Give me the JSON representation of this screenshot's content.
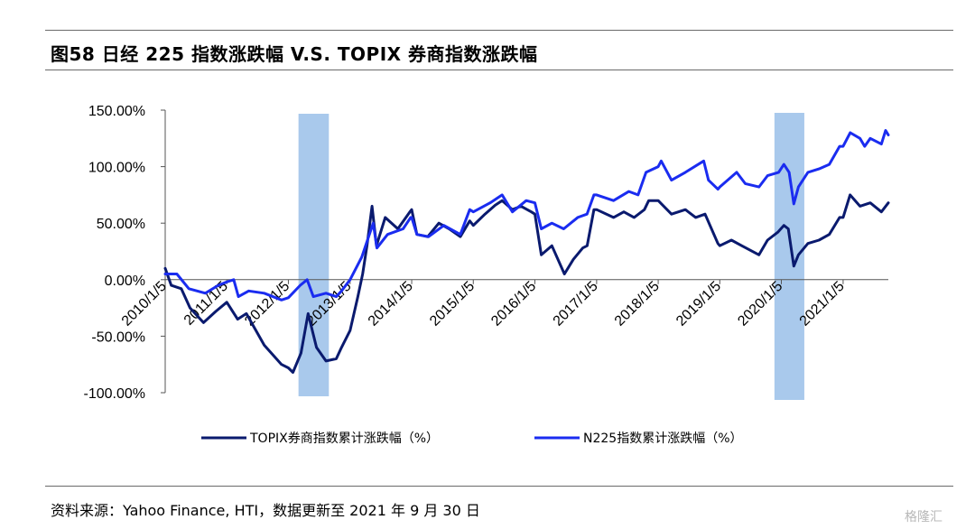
{
  "page": {
    "title": "图58 日经 225 指数涨跌幅 V.S. TOPIX 券商指数涨跌幅",
    "source": "资料来源：Yahoo Finance, HTI，数据更新至 2021 年 9 月 30 日",
    "watermark": "格隆汇"
  },
  "chart_data": {
    "type": "line",
    "title": "图58 日经 225 指数涨跌幅 V.S. TOPIX 券商指数涨跌幅",
    "xlabel": "",
    "ylabel": "",
    "ylim": [
      -100,
      150
    ],
    "y_ticks": [
      150,
      100,
      50,
      0,
      -50,
      -100
    ],
    "y_tick_labels": [
      "150.00%",
      "100.00%",
      "50.00%",
      "0.00%",
      "-50.00%",
      "-100.00%"
    ],
    "x_tick_labels": [
      "2010/1/5",
      "2011/1/5",
      "2012/1/5",
      "2013/1/5",
      "2014/1/5",
      "2015/1/5",
      "2016/1/5",
      "2017/1/5",
      "2018/1/5",
      "2019/1/5",
      "2020/1/5",
      "2021/1/5"
    ],
    "x_range": [
      "2010/1/5",
      "2021/9/30"
    ],
    "grid": false,
    "legend_position": "bottom",
    "shaded_periods": [
      {
        "start": "2012/3/5",
        "end": "2012/9/1",
        "color": "#a9c9ec"
      },
      {
        "start": "2019/11/25",
        "end": "2020/5/20",
        "color": "#a9c9ec"
      }
    ],
    "series": [
      {
        "name": "TOPIX券商指数累计涨跌幅（%）",
        "color": "#0a1a6e",
        "points": [
          [
            "2010/1/5",
            10
          ],
          [
            "2010/2/10",
            -5
          ],
          [
            "2010/4/10",
            -8
          ],
          [
            "2010/6/1",
            -25
          ],
          [
            "2010/8/20",
            -38
          ],
          [
            "2010/11/1",
            -28
          ],
          [
            "2011/1/5",
            -20
          ],
          [
            "2011/3/10",
            -35
          ],
          [
            "2011/5/1",
            -30
          ],
          [
            "2011/8/15",
            -58
          ],
          [
            "2011/11/25",
            -75
          ],
          [
            "2012/1/5",
            -78
          ],
          [
            "2012/2/1",
            -82
          ],
          [
            "2012/3/20",
            -65
          ],
          [
            "2012/5/1",
            -30
          ],
          [
            "2012/6/20",
            -60
          ],
          [
            "2012/8/15",
            -72
          ],
          [
            "2012/10/15",
            -70
          ],
          [
            "2012/11/15",
            -60
          ],
          [
            "2013/1/5",
            -45
          ],
          [
            "2013/2/20",
            -15
          ],
          [
            "2013/3/20",
            5
          ],
          [
            "2013/4/15",
            30
          ],
          [
            "2013/5/15",
            65
          ],
          [
            "2013/6/10",
            30
          ],
          [
            "2013/8/1",
            55
          ],
          [
            "2013/10/15",
            45
          ],
          [
            "2013/12/25",
            60
          ],
          [
            "2014/1/5",
            62
          ],
          [
            "2014/2/5",
            40
          ],
          [
            "2014/4/10",
            38
          ],
          [
            "2014/6/15",
            50
          ],
          [
            "2014/8/15",
            45
          ],
          [
            "2014/10/20",
            38
          ],
          [
            "2014/12/15",
            52
          ],
          [
            "2015/1/5",
            48
          ],
          [
            "2015/3/15",
            58
          ],
          [
            "2015/5/15",
            66
          ],
          [
            "2015/6/25",
            70
          ],
          [
            "2015/8/25",
            62
          ],
          [
            "2015/10/15",
            65
          ],
          [
            "2015/12/15",
            60
          ],
          [
            "2016/1/5",
            58
          ],
          [
            "2016/2/12",
            22
          ],
          [
            "2016/4/15",
            30
          ],
          [
            "2016/6/28",
            5
          ],
          [
            "2016/8/20",
            18
          ],
          [
            "2016/10/15",
            28
          ],
          [
            "2016/11/10",
            30
          ],
          [
            "2016/12/20",
            62
          ],
          [
            "2017/1/5",
            62
          ],
          [
            "2017/4/15",
            55
          ],
          [
            "2017/6/15",
            60
          ],
          [
            "2017/8/15",
            55
          ],
          [
            "2017/10/15",
            62
          ],
          [
            "2017/11/10",
            70
          ],
          [
            "2018/1/5",
            70
          ],
          [
            "2018/3/25",
            58
          ],
          [
            "2018/6/15",
            62
          ],
          [
            "2018/8/15",
            55
          ],
          [
            "2018/10/10",
            58
          ],
          [
            "2018/12/25",
            32
          ],
          [
            "2019/1/5",
            30
          ],
          [
            "2019/3/15",
            35
          ],
          [
            "2019/5/15",
            30
          ],
          [
            "2019/8/25",
            22
          ],
          [
            "2019/10/15",
            35
          ],
          [
            "2019/12/15",
            42
          ],
          [
            "2020/1/20",
            48
          ],
          [
            "2020/2/15",
            45
          ],
          [
            "2020/3/19",
            12
          ],
          [
            "2020/4/15",
            22
          ],
          [
            "2020/6/10",
            32
          ],
          [
            "2020/8/15",
            35
          ],
          [
            "2020/10/15",
            40
          ],
          [
            "2020/12/15",
            55
          ],
          [
            "2021/1/5",
            55
          ],
          [
            "2021/2/15",
            75
          ],
          [
            "2021/4/15",
            65
          ],
          [
            "2021/6/15",
            68
          ],
          [
            "2021/8/20",
            60
          ],
          [
            "2021/9/30",
            68
          ]
        ]
      },
      {
        "name": "N225指数累计涨跌幅（%）",
        "color": "#1a2cf0",
        "points": [
          [
            "2010/1/5",
            5
          ],
          [
            "2010/3/15",
            5
          ],
          [
            "2010/5/25",
            -8
          ],
          [
            "2010/8/31",
            -12
          ],
          [
            "2010/11/15",
            -5
          ],
          [
            "2011/1/5",
            -2
          ],
          [
            "2011/2/15",
            0
          ],
          [
            "2011/3/15",
            -15
          ],
          [
            "2011/5/15",
            -10
          ],
          [
            "2011/8/15",
            -12
          ],
          [
            "2011/11/25",
            -18
          ],
          [
            "2012/1/5",
            -16
          ],
          [
            "2012/3/15",
            -5
          ],
          [
            "2012/4/25",
            0
          ],
          [
            "2012/6/1",
            -15
          ],
          [
            "2012/8/15",
            -12
          ],
          [
            "2012/10/15",
            -15
          ],
          [
            "2012/11/15",
            -10
          ],
          [
            "2013/1/5",
            0
          ],
          [
            "2013/3/15",
            20
          ],
          [
            "2013/5/22",
            50
          ],
          [
            "2013/6/13",
            28
          ],
          [
            "2013/8/15",
            40
          ],
          [
            "2013/11/15",
            45
          ],
          [
            "2013/12/30",
            55
          ],
          [
            "2014/1/5",
            55
          ],
          [
            "2014/2/5",
            40
          ],
          [
            "2014/4/15",
            38
          ],
          [
            "2014/7/15",
            48
          ],
          [
            "2014/10/20",
            40
          ],
          [
            "2014/12/15",
            62
          ],
          [
            "2015/1/5",
            60
          ],
          [
            "2015/4/15",
            68
          ],
          [
            "2015/6/25",
            75
          ],
          [
            "2015/8/25",
            60
          ],
          [
            "2015/11/15",
            70
          ],
          [
            "2016/1/5",
            68
          ],
          [
            "2016/2/12",
            45
          ],
          [
            "2016/4/15",
            50
          ],
          [
            "2016/6/24",
            45
          ],
          [
            "2016/9/15",
            55
          ],
          [
            "2016/11/9",
            58
          ],
          [
            "2016/12/20",
            75
          ],
          [
            "2017/1/5",
            75
          ],
          [
            "2017/4/15",
            70
          ],
          [
            "2017/7/15",
            78
          ],
          [
            "2017/9/8",
            75
          ],
          [
            "2017/10/25",
            95
          ],
          [
            "2018/1/5",
            100
          ],
          [
            "2018/1/23",
            105
          ],
          [
            "2018/3/25",
            88
          ],
          [
            "2018/6/15",
            95
          ],
          [
            "2018/10/2",
            105
          ],
          [
            "2018/10/30",
            88
          ],
          [
            "2018/12/25",
            80
          ],
          [
            "2019/1/5",
            82
          ],
          [
            "2019/4/15",
            95
          ],
          [
            "2019/6/5",
            85
          ],
          [
            "2019/8/25",
            82
          ],
          [
            "2019/10/15",
            92
          ],
          [
            "2019/12/20",
            95
          ],
          [
            "2020/1/20",
            102
          ],
          [
            "2020/2/20",
            95
          ],
          [
            "2020/3/19",
            67
          ],
          [
            "2020/4/15",
            82
          ],
          [
            "2020/6/10",
            95
          ],
          [
            "2020/8/15",
            98
          ],
          [
            "2020/10/15",
            102
          ],
          [
            "2020/12/15",
            118
          ],
          [
            "2021/1/5",
            118
          ],
          [
            "2021/2/16",
            130
          ],
          [
            "2021/4/15",
            125
          ],
          [
            "2021/5/13",
            118
          ],
          [
            "2021/6/15",
            125
          ],
          [
            "2021/8/20",
            120
          ],
          [
            "2021/9/14",
            132
          ],
          [
            "2021/9/30",
            128
          ]
        ]
      }
    ]
  }
}
